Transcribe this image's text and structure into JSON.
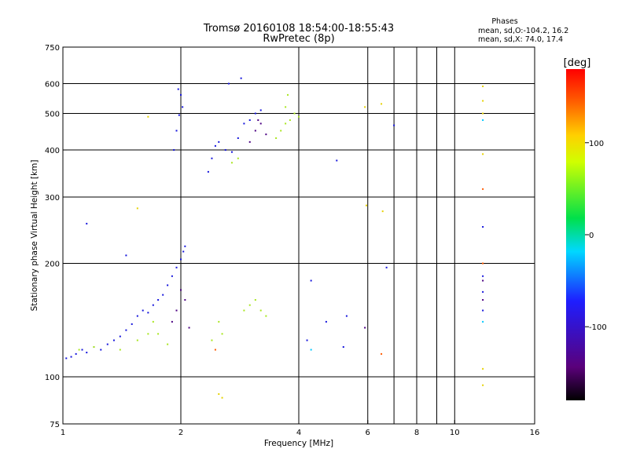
{
  "chart_data": {
    "type": "scatter",
    "title": "Tromsø 20160108 18:54:00-18:55:43",
    "subtitle": "RwPretec (8p)",
    "xlabel": "Frequency [MHz]",
    "ylabel": "Stationary phase Virtual Height [km]",
    "x_scale": "log",
    "y_scale": "log",
    "xlim": [
      1,
      16
    ],
    "ylim": [
      75,
      750
    ],
    "x_ticks": [
      1,
      2,
      4,
      6,
      8,
      10,
      16
    ],
    "x_tick_labels": [
      "1",
      "2",
      "4",
      "6",
      "8",
      "10",
      "16"
    ],
    "x_grid": [
      2,
      4,
      6,
      7,
      8,
      9,
      10
    ],
    "y_ticks": [
      75,
      100,
      200,
      300,
      400,
      500,
      600,
      750
    ],
    "y_tick_labels": [
      "75",
      "100",
      "200",
      "300",
      "400",
      "500",
      "600",
      "750"
    ],
    "grid": true,
    "legend": {
      "title": "Phases",
      "lines": [
        "mean, sd,O:-104.2, 16.2",
        "mean, sd,X:  74.0, 17.4"
      ],
      "placement": "top-right"
    },
    "colorbar": {
      "label": "[deg]",
      "range": [
        -180,
        180
      ],
      "ticks": [
        100,
        0,
        -100
      ],
      "tick_labels": [
        "100",
        "0",
        "-100"
      ],
      "colors": [
        "#000000",
        "#5a007a",
        "#1e1eff",
        "#00d8ff",
        "#00e04a",
        "#d0ff00",
        "#ffd000",
        "#ff6000",
        "#ff0000"
      ]
    },
    "series": [
      {
        "color": "#1515dc",
        "points": [
          [
            1.02,
            112
          ],
          [
            1.05,
            113
          ],
          [
            1.08,
            115
          ],
          [
            1.12,
            118
          ],
          [
            1.15,
            116
          ],
          [
            1.2,
            120
          ],
          [
            1.25,
            118
          ],
          [
            1.3,
            122
          ],
          [
            1.35,
            125
          ],
          [
            1.4,
            128
          ],
          [
            1.45,
            133
          ],
          [
            1.5,
            138
          ],
          [
            1.55,
            145
          ],
          [
            1.6,
            150
          ],
          [
            1.65,
            148
          ],
          [
            1.7,
            155
          ],
          [
            1.75,
            160
          ],
          [
            1.8,
            165
          ],
          [
            1.85,
            175
          ],
          [
            1.9,
            185
          ],
          [
            1.95,
            195
          ],
          [
            2.0,
            205
          ],
          [
            2.03,
            215
          ],
          [
            2.05,
            222
          ],
          [
            1.97,
            580
          ],
          [
            2.0,
            560
          ],
          [
            2.02,
            520
          ],
          [
            1.98,
            495
          ],
          [
            1.95,
            450
          ],
          [
            1.92,
            400
          ],
          [
            2.35,
            350
          ],
          [
            2.4,
            380
          ],
          [
            2.45,
            410
          ],
          [
            2.5,
            420
          ],
          [
            2.6,
            400
          ],
          [
            2.7,
            395
          ],
          [
            2.8,
            430
          ],
          [
            2.9,
            470
          ],
          [
            3.0,
            480
          ],
          [
            3.1,
            500
          ],
          [
            3.2,
            510
          ],
          [
            2.65,
            600
          ],
          [
            2.85,
            620
          ],
          [
            1.15,
            255
          ],
          [
            1.45,
            210
          ],
          [
            4.3,
            180
          ],
          [
            4.7,
            140
          ],
          [
            5.3,
            145
          ],
          [
            4.2,
            125
          ],
          [
            5.2,
            120
          ],
          [
            6.7,
            195
          ],
          [
            7.0,
            465
          ],
          [
            5.0,
            375
          ],
          [
            11.8,
            250
          ],
          [
            11.8,
            185
          ],
          [
            11.8,
            168
          ],
          [
            11.8,
            150
          ]
        ]
      },
      {
        "color": "#4b0082",
        "points": [
          [
            1.9,
            140
          ],
          [
            1.95,
            150
          ],
          [
            2.0,
            170
          ],
          [
            2.05,
            160
          ],
          [
            2.1,
            135
          ],
          [
            3.1,
            450
          ],
          [
            3.2,
            470
          ],
          [
            3.3,
            440
          ],
          [
            3.0,
            420
          ],
          [
            3.15,
            480
          ],
          [
            5.9,
            135
          ],
          [
            11.8,
            180
          ],
          [
            11.8,
            160
          ]
        ]
      },
      {
        "color": "#a8e61e",
        "points": [
          [
            1.1,
            118
          ],
          [
            1.2,
            120
          ],
          [
            1.4,
            118
          ],
          [
            1.55,
            125
          ],
          [
            1.65,
            130
          ],
          [
            1.7,
            140
          ],
          [
            1.75,
            130
          ],
          [
            1.85,
            122
          ],
          [
            2.4,
            125
          ],
          [
            2.55,
            130
          ],
          [
            2.5,
            140
          ],
          [
            2.9,
            150
          ],
          [
            3.0,
            155
          ],
          [
            3.1,
            160
          ],
          [
            3.2,
            150
          ],
          [
            3.3,
            145
          ],
          [
            3.5,
            430
          ],
          [
            3.6,
            450
          ],
          [
            3.7,
            470
          ],
          [
            3.8,
            480
          ],
          [
            3.9,
            500
          ],
          [
            4.0,
            490
          ],
          [
            3.7,
            520
          ],
          [
            3.75,
            560
          ],
          [
            2.7,
            370
          ],
          [
            2.8,
            380
          ]
        ]
      },
      {
        "color": "#e6d200",
        "points": [
          [
            1.55,
            280
          ],
          [
            1.65,
            490
          ],
          [
            2.5,
            90
          ],
          [
            2.55,
            88
          ],
          [
            5.9,
            520
          ],
          [
            5.95,
            285
          ],
          [
            6.5,
            530
          ],
          [
            6.55,
            275
          ],
          [
            11.8,
            590
          ],
          [
            11.8,
            540
          ],
          [
            11.8,
            500
          ],
          [
            11.8,
            390
          ],
          [
            11.8,
            105
          ],
          [
            11.8,
            95
          ]
        ]
      },
      {
        "color": "#ff5a00",
        "points": [
          [
            2.45,
            118
          ],
          [
            6.5,
            115
          ],
          [
            11.8,
            315
          ],
          [
            11.8,
            200
          ]
        ]
      },
      {
        "color": "#00c8ff",
        "points": [
          [
            4.3,
            118
          ],
          [
            11.8,
            480
          ],
          [
            11.8,
            140
          ]
        ]
      }
    ]
  }
}
